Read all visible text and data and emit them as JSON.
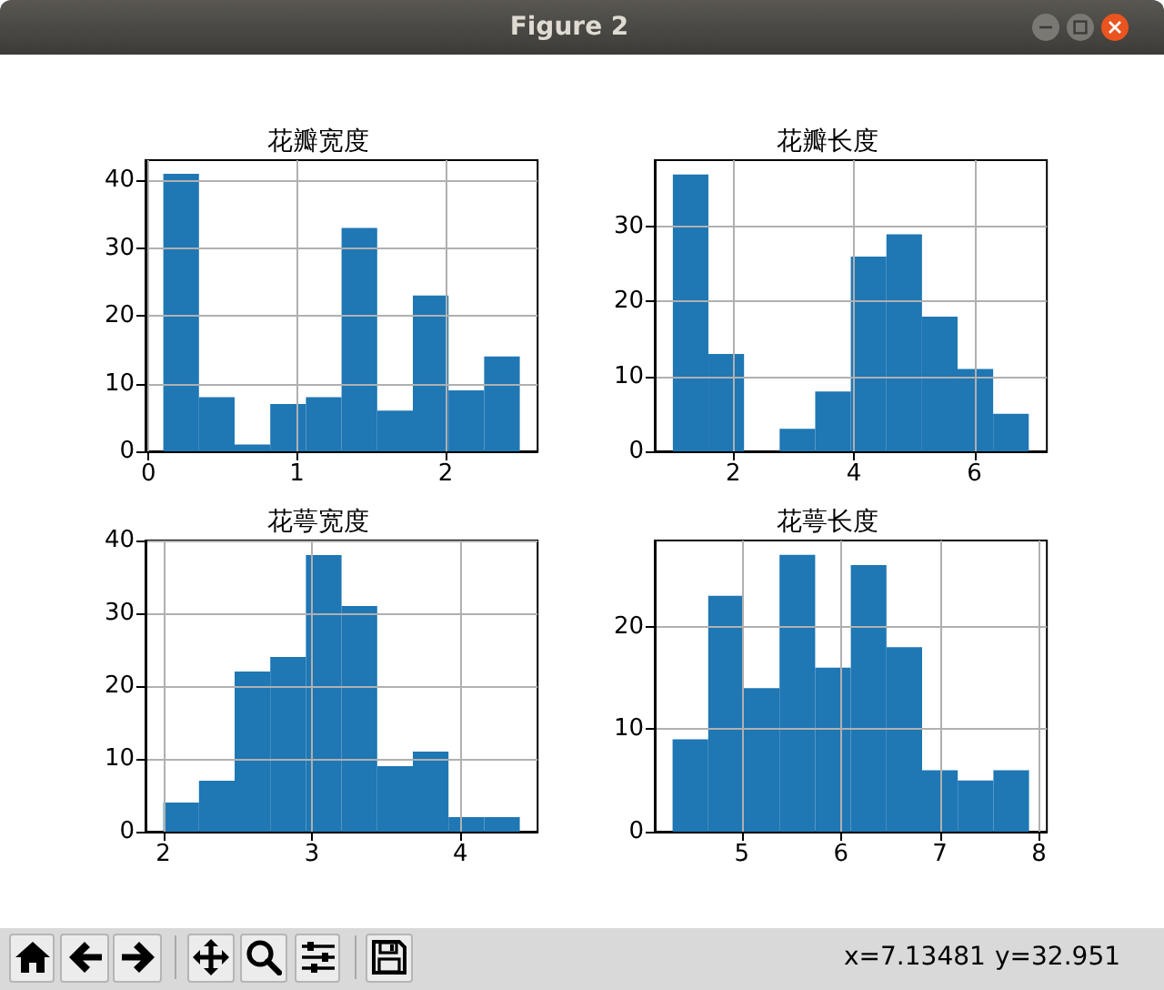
{
  "chart_data": [
    {
      "type": "other",
      "title": "Figure 2",
      "annotations": [
        "x=7.13481",
        "y=32.951"
      ]
    },
    {
      "type": "histogram",
      "title": "花瓣宽度",
      "bins": [
        0.1,
        0.34,
        0.58,
        0.82,
        1.06,
        1.3,
        1.54,
        1.78,
        2.02,
        2.26,
        2.5
      ],
      "values": [
        41,
        8,
        1,
        7,
        8,
        33,
        6,
        23,
        9,
        14
      ],
      "color": "#1f77b4",
      "xlim": [
        -0.02,
        2.62
      ],
      "ylim": [
        0,
        43
      ],
      "xticks": [
        0,
        1,
        2
      ],
      "yticks": [
        0,
        10,
        20,
        30,
        40
      ],
      "grid": true
    },
    {
      "type": "histogram",
      "title": "花瓣长度",
      "bins": [
        1.0,
        1.59,
        2.18,
        2.77,
        3.36,
        3.95,
        4.54,
        5.13,
        5.72,
        6.31,
        6.9
      ],
      "values": [
        37,
        13,
        0,
        3,
        8,
        26,
        29,
        18,
        11,
        5
      ],
      "color": "#1f77b4",
      "xlim": [
        0.7,
        7.2
      ],
      "ylim": [
        0,
        38.9
      ],
      "xticks": [
        2,
        4,
        6
      ],
      "yticks": [
        0,
        10,
        20,
        30
      ],
      "grid": true
    },
    {
      "type": "histogram",
      "title": "花萼宽度",
      "bins": [
        2.0,
        2.24,
        2.48,
        2.72,
        2.96,
        3.2,
        3.44,
        3.68,
        3.92,
        4.16,
        4.4
      ],
      "values": [
        4,
        7,
        22,
        24,
        38,
        31,
        9,
        11,
        2,
        2
      ],
      "color": "#1f77b4",
      "xlim": [
        1.88,
        4.52
      ],
      "ylim": [
        0,
        40
      ],
      "xticks": [
        2,
        3,
        4
      ],
      "yticks": [
        0,
        10,
        20,
        30,
        40
      ],
      "grid": true
    },
    {
      "type": "histogram",
      "title": "花萼长度",
      "bins": [
        4.3,
        4.66,
        5.02,
        5.38,
        5.74,
        6.1,
        6.46,
        6.82,
        7.18,
        7.54,
        7.9
      ],
      "values": [
        9,
        23,
        14,
        27,
        16,
        26,
        18,
        6,
        5,
        6
      ],
      "color": "#1f77b4",
      "xlim": [
        4.12,
        8.08
      ],
      "ylim": [
        0,
        28.4
      ],
      "xticks": [
        5,
        6,
        7,
        8
      ],
      "yticks": [
        0,
        10,
        20
      ],
      "grid": true
    }
  ]
}
